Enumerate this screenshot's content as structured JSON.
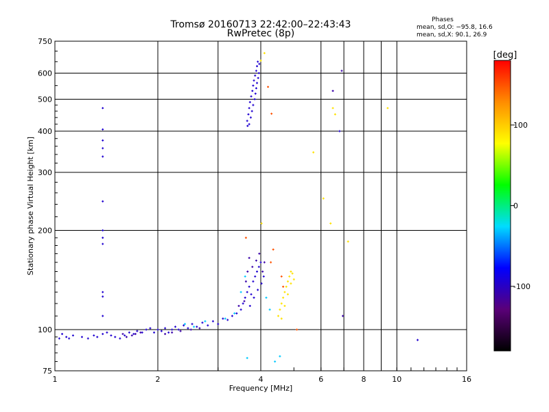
{
  "chart_data": {
    "type": "scatter",
    "title": "Tromsø 20160713 22:42:00–22:43:43",
    "subtitle": "RwPretec (8p)",
    "xlabel": "Frequency [MHz]",
    "ylabel": "Stationary phase Virtual Height [km]",
    "x_scale": "log",
    "y_scale": "log",
    "xlim": [
      1,
      16
    ],
    "ylim": [
      75,
      750
    ],
    "x_ticks": [
      1,
      2,
      4,
      6,
      8,
      10,
      16
    ],
    "x_ticks_minor": [
      3,
      7,
      9
    ],
    "y_ticks": [
      75,
      100,
      200,
      300,
      400,
      500,
      600,
      750
    ],
    "grid": true,
    "legend": {
      "title": "Phases",
      "lines": [
        "mean, sd,O: −95.8, 16.6",
        "mean, sd,X:  90.1, 26.9"
      ],
      "placement": "top-right"
    },
    "colorbar": {
      "label": "[deg]",
      "range": [
        -180,
        180
      ],
      "ticks": [
        100,
        0,
        -100
      ],
      "colors": [
        "#000000",
        "#5a0078",
        "#0000ff",
        "#00dcff",
        "#00ff00",
        "#ffff00",
        "#ff8c00",
        "#ff0000"
      ]
    },
    "series": [
      {
        "color_value": -95,
        "points": [
          [
            1.03,
            94
          ],
          [
            1.05,
            97
          ],
          [
            1.08,
            95
          ],
          [
            1.1,
            94
          ],
          [
            1.13,
            96
          ],
          [
            1.2,
            95
          ],
          [
            1.25,
            94
          ],
          [
            1.3,
            96
          ],
          [
            1.33,
            95
          ],
          [
            1.38,
            97
          ],
          [
            1.42,
            98
          ],
          [
            1.46,
            96
          ],
          [
            1.5,
            95
          ],
          [
            1.55,
            94
          ],
          [
            1.6,
            96
          ],
          [
            1.65,
            98
          ],
          [
            1.7,
            97
          ],
          [
            1.74,
            99
          ],
          [
            1.8,
            98
          ],
          [
            1.85,
            100
          ],
          [
            1.9,
            101
          ],
          [
            1.95,
            98
          ],
          [
            2.0,
            100
          ],
          [
            2.05,
            99
          ],
          [
            2.1,
            101
          ],
          [
            2.15,
            98
          ],
          [
            2.2,
            100
          ],
          [
            2.25,
            102
          ],
          [
            2.3,
            100
          ],
          [
            2.38,
            103
          ],
          [
            2.45,
            101
          ],
          [
            2.52,
            104
          ],
          [
            2.6,
            102
          ],
          [
            2.7,
            105
          ],
          [
            2.8,
            103
          ],
          [
            2.9,
            106
          ],
          [
            3.0,
            104
          ],
          [
            3.1,
            108
          ],
          [
            3.2,
            107
          ],
          [
            3.3,
            110
          ],
          [
            3.4,
            112
          ],
          [
            3.5,
            115
          ],
          [
            3.55,
            120
          ],
          [
            3.6,
            125
          ],
          [
            3.65,
            130
          ],
          [
            3.7,
            135
          ],
          [
            3.75,
            128
          ],
          [
            3.8,
            140
          ],
          [
            3.85,
            145
          ],
          [
            3.9,
            150
          ],
          [
            3.95,
            155
          ],
          [
            4.0,
            160
          ],
          [
            3.72,
            118
          ],
          [
            3.82,
            125
          ],
          [
            3.92,
            132
          ],
          [
            4.02,
            138
          ],
          [
            4.08,
            145
          ],
          [
            1.38,
            470
          ],
          [
            1.38,
            405
          ],
          [
            1.38,
            375
          ],
          [
            1.38,
            355
          ],
          [
            1.38,
            335
          ],
          [
            1.38,
            245
          ],
          [
            1.38,
            200
          ],
          [
            1.38,
            190
          ],
          [
            1.38,
            182
          ],
          [
            1.38,
            130
          ],
          [
            1.38,
            126
          ],
          [
            1.38,
            110
          ],
          [
            3.65,
            430
          ],
          [
            3.68,
            450
          ],
          [
            3.7,
            470
          ],
          [
            3.72,
            490
          ],
          [
            3.75,
            510
          ],
          [
            3.78,
            530
          ],
          [
            3.8,
            550
          ],
          [
            3.82,
            570
          ],
          [
            3.85,
            590
          ],
          [
            3.88,
            610
          ],
          [
            3.9,
            630
          ],
          [
            3.92,
            650
          ],
          [
            3.7,
            420
          ],
          [
            3.74,
            440
          ],
          [
            3.77,
            460
          ],
          [
            3.8,
            480
          ],
          [
            3.84,
            500
          ],
          [
            3.86,
            520
          ],
          [
            3.88,
            540
          ],
          [
            3.9,
            560
          ],
          [
            3.93,
            580
          ],
          [
            3.95,
            600
          ],
          [
            3.66,
            415
          ],
          [
            3.96,
            640
          ],
          [
            6.8,
            400
          ],
          [
            11.5,
            93
          ]
        ]
      },
      {
        "color_value": -110,
        "points": [
          [
            1.58,
            97
          ],
          [
            1.62,
            95
          ],
          [
            1.68,
            96
          ],
          [
            1.72,
            97
          ],
          [
            1.78,
            98
          ],
          [
            2.1,
            97
          ],
          [
            2.2,
            98
          ],
          [
            2.33,
            99
          ],
          [
            2.5,
            100
          ],
          [
            2.65,
            101
          ],
          [
            3.45,
            118
          ],
          [
            3.58,
            122
          ],
          [
            3.62,
            140
          ],
          [
            3.66,
            150
          ],
          [
            3.7,
            165
          ],
          [
            3.78,
            155
          ],
          [
            3.88,
            162
          ],
          [
            3.96,
            170
          ],
          [
            4.05,
            150
          ],
          [
            4.1,
            160
          ],
          [
            6.5,
            530
          ],
          [
            6.9,
            610
          ],
          [
            6.95,
            110
          ]
        ]
      },
      {
        "color_value": -30,
        "points": [
          [
            2.4,
            104
          ],
          [
            2.55,
            102
          ],
          [
            2.75,
            106
          ],
          [
            3.15,
            108
          ],
          [
            3.35,
            112
          ],
          [
            3.5,
            130
          ],
          [
            3.6,
            145
          ],
          [
            4.15,
            125
          ],
          [
            4.25,
            115
          ],
          [
            3.65,
            82
          ],
          [
            4.55,
            83
          ],
          [
            4.4,
            80
          ]
        ]
      },
      {
        "color_value": 90,
        "points": [
          [
            4.5,
            110
          ],
          [
            4.55,
            115
          ],
          [
            4.6,
            120
          ],
          [
            4.65,
            125
          ],
          [
            4.7,
            130
          ],
          [
            4.75,
            135
          ],
          [
            4.8,
            140
          ],
          [
            4.85,
            145
          ],
          [
            4.9,
            150
          ],
          [
            4.95,
            148
          ],
          [
            5.0,
            142
          ],
          [
            4.6,
            108
          ],
          [
            4.7,
            118
          ],
          [
            4.8,
            128
          ],
          [
            4.9,
            138
          ],
          [
            5.7,
            345
          ],
          [
            6.1,
            250
          ],
          [
            6.4,
            210
          ],
          [
            6.5,
            470
          ],
          [
            6.6,
            450
          ],
          [
            9.4,
            470
          ],
          [
            7.2,
            185
          ],
          [
            4.1,
            690
          ],
          [
            4.0,
            655
          ],
          [
            4.02,
            210
          ]
        ]
      },
      {
        "color_value": 150,
        "points": [
          [
            3.62,
            190
          ],
          [
            4.2,
            545
          ],
          [
            4.3,
            452
          ],
          [
            4.6,
            145
          ],
          [
            4.65,
            135
          ],
          [
            5.1,
            100
          ],
          [
            4.35,
            175
          ],
          [
            4.28,
            160
          ]
        ]
      }
    ]
  }
}
